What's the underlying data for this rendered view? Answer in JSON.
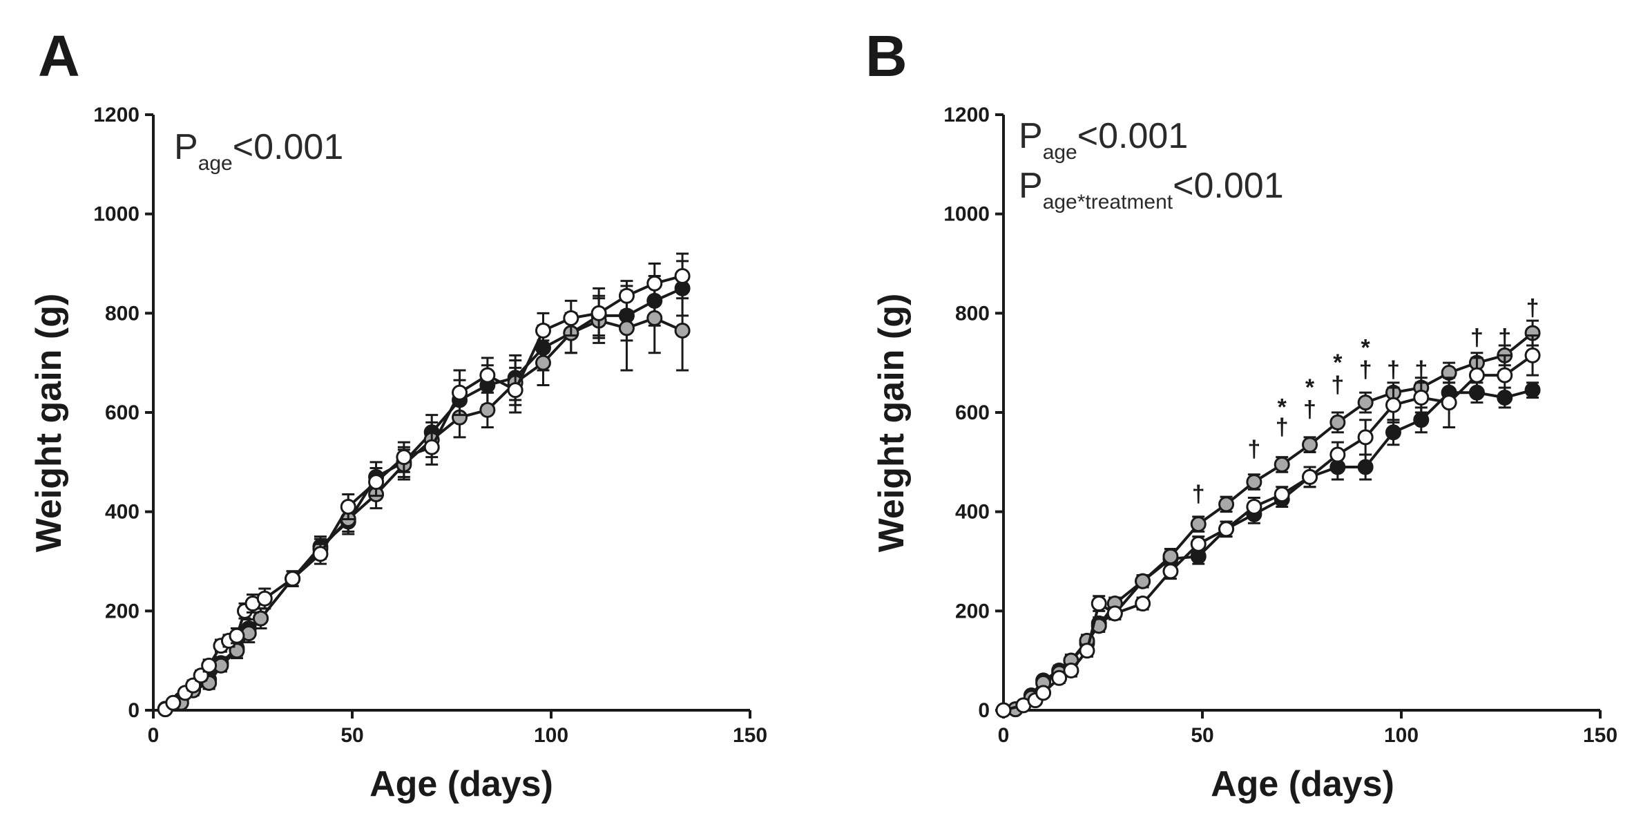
{
  "chart_data": [
    {
      "type": "line",
      "panel": "A",
      "xlabel": "Age (days)",
      "ylabel": "Weight gain (g)",
      "xlim": [
        0,
        150
      ],
      "ylim": [
        0,
        1200
      ],
      "xticks": [
        "0",
        "50",
        "100",
        "150"
      ],
      "yticks": [
        "0",
        "200",
        "400",
        "600",
        "800",
        "1000",
        "1200"
      ],
      "annotation_main": "P",
      "annotation_sub": "age",
      "annotation_value": "<0.001",
      "series": [
        {
          "name": "black",
          "marker_color": "#1a1a1a",
          "x": [
            3,
            7,
            10,
            14,
            17,
            21,
            24,
            27,
            35,
            42,
            49,
            56,
            63,
            70,
            77,
            84,
            91,
            98,
            105,
            112,
            119,
            126,
            133
          ],
          "y": [
            3,
            22,
            45,
            62,
            95,
            125,
            165,
            185,
            265,
            330,
            380,
            470,
            500,
            560,
            625,
            655,
            670,
            730,
            760,
            795,
            795,
            825,
            850
          ],
          "err": [
            3,
            8,
            10,
            10,
            12,
            15,
            18,
            20,
            15,
            20,
            25,
            30,
            30,
            35,
            40,
            40,
            45,
            45,
            40,
            40,
            50,
            50,
            55
          ]
        },
        {
          "name": "gray",
          "marker_color": "#a8a8a8",
          "x": [
            3,
            7,
            10,
            14,
            17,
            21,
            24,
            27,
            35,
            42,
            49,
            56,
            63,
            70,
            77,
            84,
            91,
            98,
            105,
            112,
            119,
            126,
            133
          ],
          "y": [
            2,
            15,
            40,
            55,
            90,
            120,
            155,
            185,
            265,
            325,
            385,
            435,
            495,
            545,
            590,
            605,
            660,
            700,
            760,
            785,
            770,
            790,
            765
          ],
          "err": [
            3,
            8,
            10,
            12,
            12,
            15,
            18,
            20,
            15,
            20,
            25,
            28,
            30,
            35,
            40,
            35,
            45,
            45,
            40,
            45,
            85,
            70,
            80
          ]
        },
        {
          "name": "white",
          "marker_color": "#ffffff",
          "x": [
            3,
            5,
            8,
            10,
            12,
            14,
            17,
            19,
            21,
            23,
            25,
            28,
            35,
            42,
            49,
            56,
            63,
            70,
            77,
            84,
            91,
            98,
            105,
            112,
            119,
            126,
            133
          ],
          "y": [
            2,
            15,
            35,
            50,
            70,
            90,
            130,
            140,
            150,
            200,
            215,
            225,
            265,
            315,
            410,
            460,
            510,
            530,
            640,
            675,
            645,
            765,
            790,
            800,
            835,
            860,
            875
          ],
          "err": [
            3,
            6,
            8,
            10,
            10,
            12,
            12,
            12,
            15,
            15,
            18,
            20,
            15,
            20,
            25,
            28,
            30,
            35,
            45,
            35,
            45,
            35,
            35,
            50,
            30,
            40,
            45
          ]
        }
      ]
    },
    {
      "type": "line",
      "panel": "B",
      "xlabel": "Age (days)",
      "ylabel": "Weight gain (g)",
      "xlim": [
        0,
        150
      ],
      "ylim": [
        0,
        1200
      ],
      "xticks": [
        "0",
        "50",
        "100",
        "150"
      ],
      "yticks": [
        "0",
        "200",
        "400",
        "600",
        "800",
        "1000",
        "1200"
      ],
      "annotation_main": "P",
      "annotation_sub": "age",
      "annotation_value": "<0.001",
      "annotation2_main": "P",
      "annotation2_sub": "age*treatment",
      "annotation2_value": "<0.001",
      "significance_marks": [
        {
          "x": 49,
          "y": 420,
          "text": "†"
        },
        {
          "x": 63,
          "y": 510,
          "text": "†"
        },
        {
          "x": 70,
          "y": 555,
          "text": "†"
        },
        {
          "x": 70,
          "y": 595,
          "text": "*"
        },
        {
          "x": 77,
          "y": 590,
          "text": "†"
        },
        {
          "x": 77,
          "y": 635,
          "text": "*"
        },
        {
          "x": 84,
          "y": 640,
          "text": "†"
        },
        {
          "x": 84,
          "y": 685,
          "text": "*"
        },
        {
          "x": 91,
          "y": 670,
          "text": "†"
        },
        {
          "x": 91,
          "y": 715,
          "text": "*"
        },
        {
          "x": 98,
          "y": 670,
          "text": "†"
        },
        {
          "x": 105,
          "y": 670,
          "text": "†"
        },
        {
          "x": 119,
          "y": 735,
          "text": "†"
        },
        {
          "x": 126,
          "y": 735,
          "text": "†"
        },
        {
          "x": 133,
          "y": 795,
          "text": "†"
        }
      ],
      "series": [
        {
          "name": "black",
          "marker_color": "#1a1a1a",
          "x": [
            3,
            7,
            10,
            14,
            17,
            21,
            24,
            28,
            35,
            42,
            49,
            56,
            63,
            70,
            77,
            84,
            91,
            98,
            105,
            112,
            119,
            126,
            133
          ],
          "y": [
            2,
            30,
            60,
            80,
            100,
            135,
            175,
            195,
            260,
            305,
            310,
            365,
            395,
            425,
            470,
            490,
            490,
            560,
            585,
            640,
            640,
            630,
            645
          ],
          "err": [
            2,
            6,
            8,
            10,
            12,
            12,
            12,
            12,
            12,
            15,
            15,
            15,
            18,
            15,
            20,
            25,
            25,
            25,
            25,
            20,
            20,
            20,
            15
          ]
        },
        {
          "name": "gray",
          "marker_color": "#a8a8a8",
          "x": [
            3,
            7,
            10,
            14,
            17,
            21,
            24,
            28,
            35,
            42,
            49,
            56,
            63,
            70,
            77,
            84,
            91,
            98,
            105,
            112,
            119,
            126,
            133
          ],
          "y": [
            2,
            25,
            55,
            75,
            100,
            140,
            170,
            215,
            260,
            310,
            375,
            415,
            460,
            495,
            535,
            580,
            620,
            640,
            650,
            680,
            700,
            715,
            760
          ],
          "err": [
            2,
            6,
            8,
            10,
            12,
            12,
            12,
            12,
            12,
            15,
            15,
            15,
            15,
            15,
            15,
            20,
            20,
            20,
            20,
            20,
            20,
            20,
            25
          ]
        },
        {
          "name": "white",
          "marker_color": "#ffffff",
          "x": [
            0,
            5,
            8,
            10,
            14,
            17,
            21,
            24,
            28,
            35,
            42,
            49,
            56,
            63,
            70,
            77,
            84,
            91,
            98,
            105,
            112,
            119,
            126,
            133
          ],
          "y": [
            0,
            10,
            20,
            35,
            65,
            80,
            120,
            215,
            195,
            215,
            280,
            335,
            365,
            410,
            435,
            470,
            515,
            550,
            615,
            630,
            620,
            675,
            675,
            715
          ],
          "err": [
            2,
            5,
            6,
            8,
            10,
            12,
            12,
            15,
            12,
            12,
            15,
            15,
            15,
            18,
            15,
            20,
            25,
            35,
            35,
            30,
            50,
            35,
            40,
            40
          ]
        }
      ]
    }
  ]
}
